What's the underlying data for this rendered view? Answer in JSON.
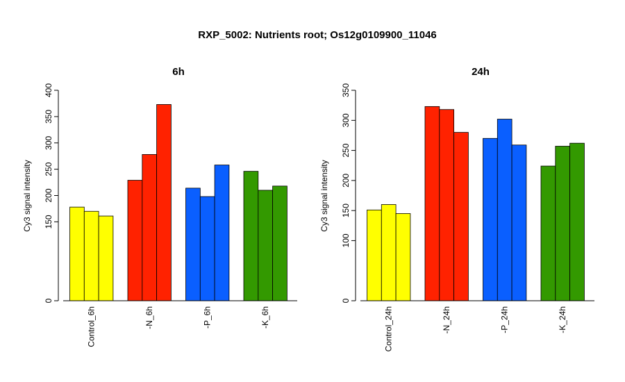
{
  "figure": {
    "title": "RXP_5002: Nutrients root; Os12g0109900_11046"
  },
  "chart_data": [
    {
      "type": "bar",
      "title": "6h",
      "ylabel": "Cy3 signal intensity",
      "ylim": [
        0,
        400
      ],
      "yticks": [
        0,
        150,
        200,
        250,
        300,
        350,
        400
      ],
      "groups": [
        {
          "label": "Control_6h",
          "color": "#FFFF00",
          "values": [
            178,
            170,
            161
          ]
        },
        {
          "label": "-N_6h",
          "color": "#FF2200",
          "values": [
            229,
            278,
            373
          ]
        },
        {
          "label": "-P_6h",
          "color": "#0A5FFF",
          "values": [
            214,
            198,
            258
          ]
        },
        {
          "label": "-K_6h",
          "color": "#339900",
          "values": [
            246,
            210,
            218
          ]
        }
      ]
    },
    {
      "type": "bar",
      "title": "24h",
      "ylabel": "Cy3 signal intensity",
      "ylim": [
        0,
        350
      ],
      "yticks": [
        0,
        100,
        150,
        200,
        250,
        300,
        350
      ],
      "groups": [
        {
          "label": "Control_24h",
          "color": "#FFFF00",
          "values": [
            151,
            160,
            145
          ]
        },
        {
          "label": "-N_24h",
          "color": "#FF2200",
          "values": [
            323,
            318,
            280
          ]
        },
        {
          "label": "-P_24h",
          "color": "#0A5FFF",
          "values": [
            270,
            302,
            259
          ]
        },
        {
          "label": "-K_24h",
          "color": "#339900",
          "values": [
            224,
            257,
            262
          ]
        }
      ]
    }
  ]
}
